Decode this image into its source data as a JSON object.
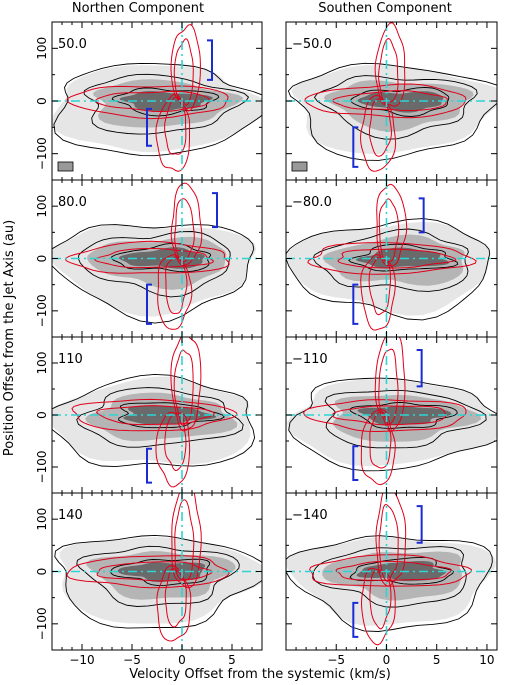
{
  "chart_data": {
    "type": "contour-grid",
    "column_titles": [
      "Northen Component",
      "Southen Component"
    ],
    "ylabel": "Position Offset from the Jet Axis (au)",
    "xlabel": "Velocity Offset from the systemic (km/s)",
    "ylim": [
      -150,
      150
    ],
    "y_ticks": [
      -100,
      0,
      100
    ],
    "y_tick_labels": [
      "−100",
      "0",
      "100"
    ],
    "columns": [
      {
        "xlim": [
          -13,
          8
        ],
        "x_ticks": [
          -10,
          -5,
          0,
          5
        ],
        "x_tick_labels": [
          "−10",
          "−5",
          "0",
          "5"
        ]
      },
      {
        "xlim": [
          -10,
          11
        ],
        "x_ticks": [
          -5,
          0,
          5,
          10
        ],
        "x_tick_labels": [
          "−5",
          "0",
          "5",
          "10"
        ]
      }
    ],
    "panels": [
      {
        "label": "50.0",
        "row": 0,
        "col": 0,
        "beam": true,
        "brackets": [
          {
            "x": 3.0,
            "y0": 40,
            "y1": 115,
            "side": "right"
          },
          {
            "x": -3.5,
            "y0": -85,
            "y1": -15,
            "side": "left"
          }
        ]
      },
      {
        "label": "−50.0",
        "row": 0,
        "col": 1,
        "beam": true,
        "brackets": [
          {
            "x": -3.3,
            "y0": -125,
            "y1": -50,
            "side": "left"
          }
        ]
      },
      {
        "label": "80.0",
        "row": 1,
        "col": 0,
        "beam": false,
        "brackets": [
          {
            "x": 3.5,
            "y0": 60,
            "y1": 125,
            "side": "right"
          },
          {
            "x": -3.5,
            "y0": -125,
            "y1": -50,
            "side": "left"
          }
        ]
      },
      {
        "label": "−80.0",
        "row": 1,
        "col": 1,
        "beam": false,
        "brackets": [
          {
            "x": 3.7,
            "y0": 50,
            "y1": 115,
            "side": "right"
          },
          {
            "x": -3.3,
            "y0": -125,
            "y1": -50,
            "side": "left"
          }
        ]
      },
      {
        "label": "110",
        "row": 2,
        "col": 0,
        "beam": false,
        "brackets": [
          {
            "x": -3.5,
            "y0": -130,
            "y1": -65,
            "side": "left"
          }
        ]
      },
      {
        "label": "−110",
        "row": 2,
        "col": 1,
        "beam": false,
        "brackets": [
          {
            "x": 3.5,
            "y0": 55,
            "y1": 125,
            "side": "right"
          },
          {
            "x": -3.3,
            "y0": -125,
            "y1": -60,
            "side": "left"
          }
        ]
      },
      {
        "label": "140",
        "row": 3,
        "col": 0,
        "beam": false,
        "brackets": []
      },
      {
        "label": "−140",
        "row": 3,
        "col": 1,
        "beam": false,
        "brackets": [
          {
            "x": 3.5,
            "y0": 55,
            "y1": 125,
            "side": "right"
          },
          {
            "x": -3.3,
            "y0": -125,
            "y1": -60,
            "side": "left"
          }
        ]
      }
    ],
    "colors": {
      "data_contour": "#000000",
      "model_contour": "#e0001a",
      "axis_cross": "#2ed3d3",
      "bracket": "#1a2bd6",
      "fill_light": "#e6e6e6",
      "fill_mid": "#b5b5b5",
      "fill_dark": "#6a6a6a",
      "beam_fill": "#999999"
    }
  }
}
